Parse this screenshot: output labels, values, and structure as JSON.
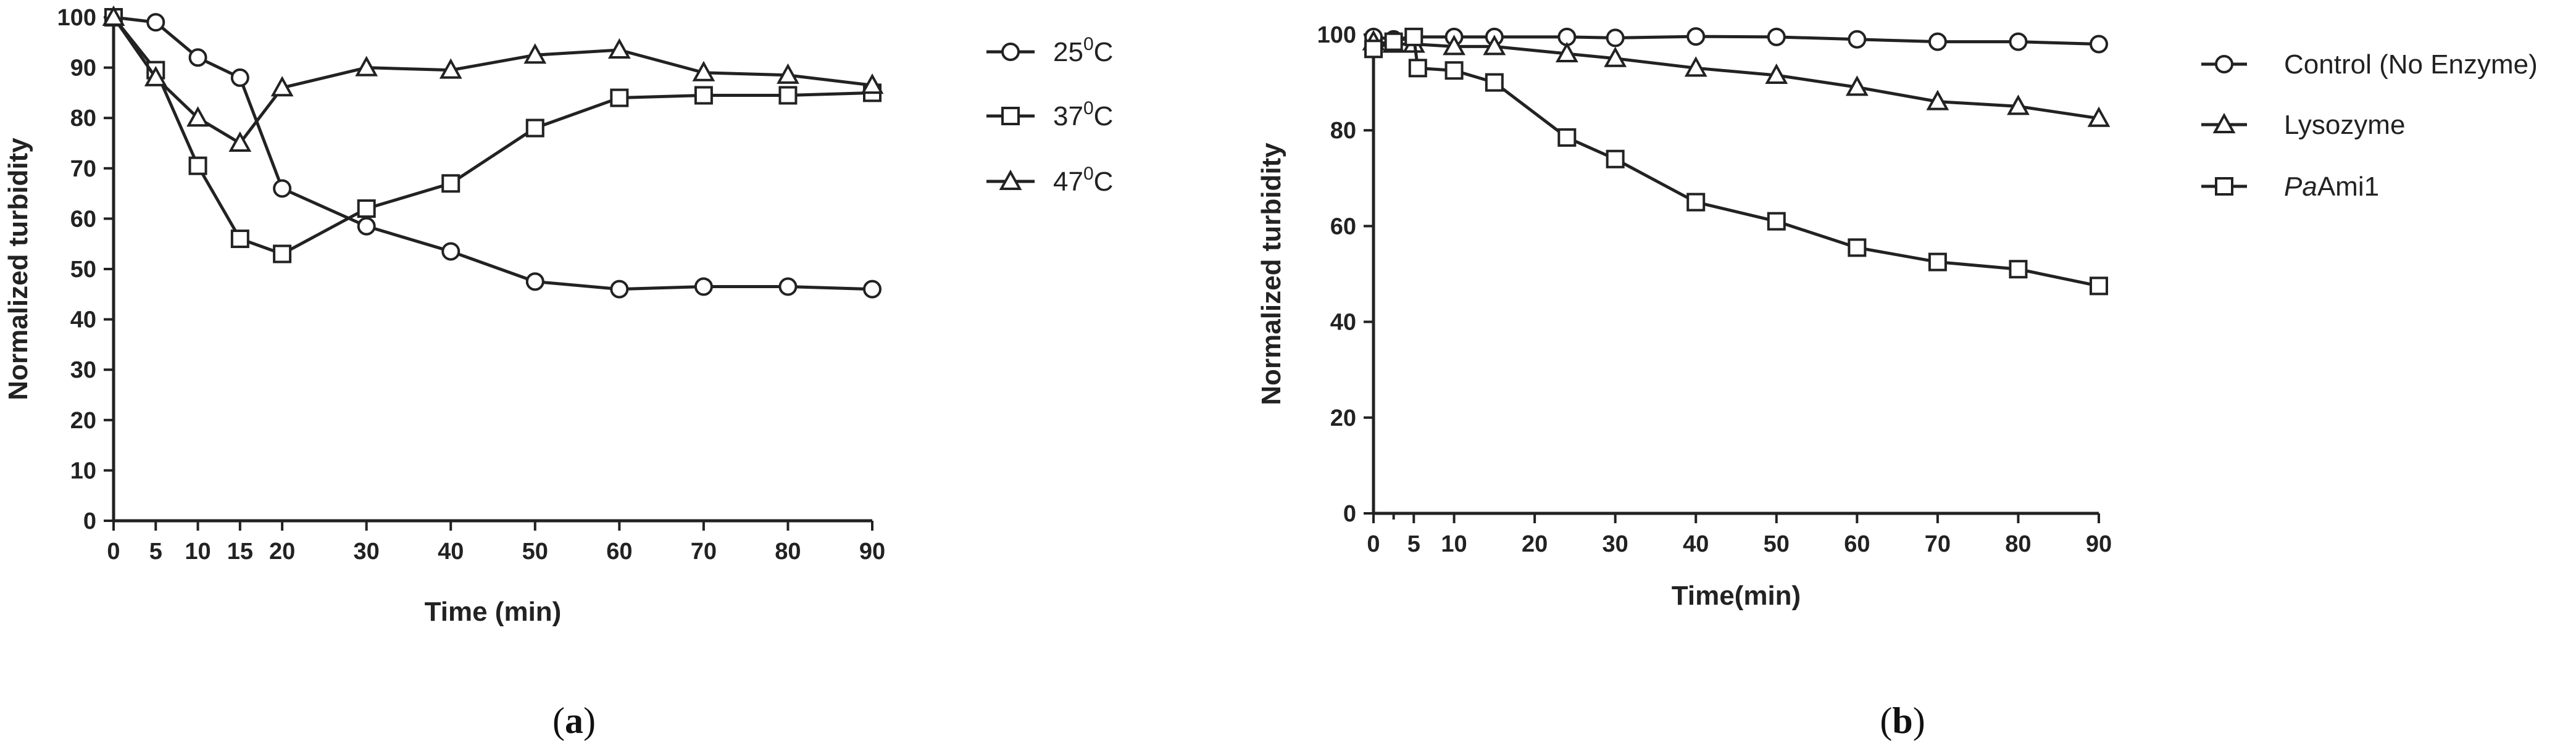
{
  "chart_data": [
    {
      "type": "line",
      "panel_label": "a",
      "title": "",
      "xlabel": "Time (min)",
      "ylabel": "Normalized turbidity",
      "xlim": [
        0,
        90
      ],
      "ylim": [
        0,
        100
      ],
      "xticks": [
        0,
        5,
        10,
        15,
        20,
        30,
        40,
        50,
        60,
        70,
        80,
        90
      ],
      "xtick_labels": [
        "0",
        "5",
        "10",
        "15",
        "20",
        "30",
        "40",
        "50",
        "60",
        "70",
        "80",
        "90"
      ],
      "yticks": [
        0,
        10,
        20,
        30,
        40,
        50,
        60,
        70,
        80,
        90,
        100
      ],
      "ytick_labels": [
        "0",
        "10",
        "20",
        "30",
        "40",
        "50",
        "60",
        "70",
        "80",
        "90",
        "100"
      ],
      "grid": false,
      "legend_position": "right",
      "series": [
        {
          "name_main": "25",
          "name_sup": "0",
          "name_tail": "C",
          "marker": "circle",
          "x": [
            0,
            5,
            10,
            15,
            20,
            30,
            40,
            50,
            60,
            70,
            80,
            90
          ],
          "y": [
            100,
            99,
            92,
            88,
            66,
            58.5,
            53.5,
            47.5,
            46,
            46.5,
            46.5,
            46
          ]
        },
        {
          "name_main": "37",
          "name_sup": "0",
          "name_tail": "C",
          "marker": "square",
          "x": [
            0,
            5,
            10,
            15,
            20,
            30,
            40,
            50,
            60,
            70,
            80,
            90
          ],
          "y": [
            100,
            89.5,
            70.5,
            56,
            53,
            62,
            67,
            78,
            84,
            84.5,
            84.5,
            85
          ]
        },
        {
          "name_main": "47",
          "name_sup": "0",
          "name_tail": "C",
          "marker": "triangle",
          "x": [
            0,
            5,
            10,
            15,
            20,
            30,
            40,
            50,
            60,
            70,
            80,
            90
          ],
          "y": [
            100,
            88,
            80,
            75,
            86,
            90,
            89.5,
            92.5,
            93.5,
            89,
            88.5,
            86.5
          ]
        }
      ]
    },
    {
      "type": "line",
      "panel_label": "b",
      "title": "",
      "xlabel": "Time(min)",
      "ylabel": "Normalized turbidity",
      "xlim": [
        0,
        90
      ],
      "ylim": [
        0,
        100
      ],
      "xticks": [
        0,
        5,
        10,
        20,
        30,
        40,
        50,
        60,
        70,
        80,
        90
      ],
      "xtick_labels": [
        "0",
        "5",
        "10",
        "20",
        "30",
        "40",
        "50",
        "60",
        "70",
        "80",
        "90"
      ],
      "minor_xticks": [
        2.5
      ],
      "yticks": [
        0,
        20,
        40,
        60,
        80,
        100
      ],
      "ytick_labels": [
        "0",
        "20",
        "40",
        "60",
        "80",
        "100"
      ],
      "grid": false,
      "legend_position": "right",
      "series": [
        {
          "name_italic": "",
          "name": "Control (No Enzyme)",
          "marker": "circle",
          "x": [
            0,
            2.5,
            5,
            10,
            15,
            24,
            30,
            40,
            50,
            60,
            70,
            80,
            90
          ],
          "y": [
            99.5,
            99,
            99.5,
            99.5,
            99.5,
            99.5,
            99.3,
            99.6,
            99.5,
            99,
            98.5,
            98.5,
            98
          ]
        },
        {
          "name_italic": "",
          "name": "Lysozyme",
          "marker": "triangle",
          "x": [
            0,
            2.5,
            5,
            10,
            15,
            24,
            30,
            40,
            50,
            60,
            70,
            80,
            90
          ],
          "y": [
            98.5,
            98,
            98,
            97.5,
            97.5,
            96,
            95,
            93,
            91.5,
            89,
            86,
            85,
            82.5
          ]
        },
        {
          "name_italic": "Pa",
          "name": "Ami1",
          "marker": "square",
          "x": [
            0,
            2.5,
            5,
            5.5,
            10,
            15,
            24,
            30,
            40,
            50,
            60,
            70,
            80,
            90
          ],
          "y": [
            97,
            98.5,
            99.5,
            93,
            92.5,
            90,
            78.5,
            74,
            65,
            61,
            55.5,
            52.5,
            51,
            47.5
          ]
        }
      ]
    }
  ]
}
